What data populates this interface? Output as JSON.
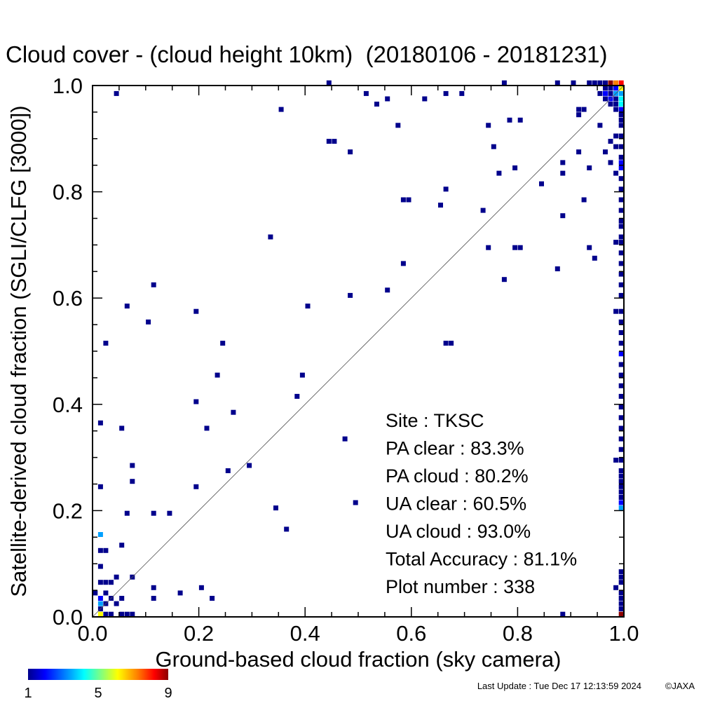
{
  "chart_data": {
    "type": "heatmap",
    "title": "Cloud cover - (cloud height 10km)  (20180106 - 20181231)",
    "xlabel": "Ground-based cloud fraction (sky camera)",
    "ylabel": "Satellite-derived cloud fraction (SGLI/CLFG [3000])",
    "xlim": [
      0.0,
      1.0
    ],
    "ylim": [
      0.0,
      1.0
    ],
    "xticks": [
      "0.0",
      "0.2",
      "0.4",
      "0.6",
      "0.8",
      "1.0"
    ],
    "yticks": [
      "0.0",
      "0.2",
      "0.4",
      "0.6",
      "0.8",
      "1.0"
    ],
    "bin_size": 0.01,
    "reference_line": "y = x",
    "grid": false,
    "colorbar": {
      "min": 1,
      "max": 9,
      "tick_labels": [
        "1",
        "5",
        "9"
      ],
      "colors": [
        "#00008c",
        "#0000ff",
        "#00a0ff",
        "#00ffff",
        "#80ff80",
        "#ffff00",
        "#ff8000",
        "#ff0000",
        "#8c0000"
      ]
    },
    "stats": [
      {
        "label": "Site : ",
        "value": "TKSC"
      },
      {
        "label": "PA clear :  ",
        "value": "83.3%"
      },
      {
        "label": "PA cloud :  ",
        "value": "80.2%"
      },
      {
        "label": "UA clear :  ",
        "value": "60.5%"
      },
      {
        "label": "UA cloud :  ",
        "value": "93.0%"
      },
      {
        "label": "Total Accuracy :  ",
        "value": "81.1%"
      },
      {
        "label": "Plot number :       ",
        "value": "338"
      }
    ],
    "points": [
      [
        0.04,
        0.98,
        1
      ],
      [
        0.44,
        1.0,
        1
      ],
      [
        0.51,
        0.98,
        1
      ],
      [
        0.53,
        0.96,
        1
      ],
      [
        0.55,
        0.97,
        1
      ],
      [
        0.62,
        0.97,
        1
      ],
      [
        0.66,
        0.98,
        1
      ],
      [
        0.69,
        0.98,
        1
      ],
      [
        0.35,
        0.95,
        1
      ],
      [
        0.57,
        0.92,
        1
      ],
      [
        0.74,
        0.92,
        1
      ],
      [
        0.78,
        0.93,
        1
      ],
      [
        0.8,
        0.93,
        1
      ],
      [
        0.44,
        0.89,
        1
      ],
      [
        0.45,
        0.89,
        1
      ],
      [
        0.48,
        0.87,
        1
      ],
      [
        0.75,
        0.88,
        1
      ],
      [
        0.76,
        0.83,
        1
      ],
      [
        0.79,
        0.84,
        1
      ],
      [
        0.88,
        0.85,
        1
      ],
      [
        0.88,
        0.83,
        1
      ],
      [
        0.91,
        0.87,
        1
      ],
      [
        0.93,
        0.84,
        1
      ],
      [
        0.84,
        0.81,
        1
      ],
      [
        0.66,
        0.8,
        1
      ],
      [
        0.58,
        0.78,
        1
      ],
      [
        0.59,
        0.78,
        1
      ],
      [
        0.65,
        0.77,
        1
      ],
      [
        0.73,
        0.76,
        1
      ],
      [
        0.88,
        0.75,
        1
      ],
      [
        0.92,
        0.78,
        1
      ],
      [
        0.33,
        0.71,
        1
      ],
      [
        0.74,
        0.69,
        1
      ],
      [
        0.79,
        0.69,
        1
      ],
      [
        0.8,
        0.69,
        1
      ],
      [
        0.93,
        0.69,
        1
      ],
      [
        0.94,
        0.67,
        1
      ],
      [
        0.58,
        0.66,
        1
      ],
      [
        0.87,
        0.65,
        1
      ],
      [
        0.77,
        0.63,
        1
      ],
      [
        0.11,
        0.62,
        1
      ],
      [
        0.48,
        0.6,
        1
      ],
      [
        0.55,
        0.61,
        1
      ],
      [
        0.06,
        0.58,
        1
      ],
      [
        0.19,
        0.57,
        1
      ],
      [
        0.4,
        0.58,
        1
      ],
      [
        0.1,
        0.55,
        1
      ],
      [
        0.02,
        0.51,
        1
      ],
      [
        0.24,
        0.51,
        1
      ],
      [
        0.66,
        0.51,
        1
      ],
      [
        0.67,
        0.51,
        1
      ],
      [
        0.23,
        0.45,
        1
      ],
      [
        0.39,
        0.45,
        1
      ],
      [
        0.38,
        0.41,
        1
      ],
      [
        0.19,
        0.4,
        1
      ],
      [
        0.26,
        0.38,
        1
      ],
      [
        0.01,
        0.36,
        1
      ],
      [
        0.05,
        0.35,
        1
      ],
      [
        0.21,
        0.35,
        1
      ],
      [
        0.47,
        0.33,
        1
      ],
      [
        0.07,
        0.28,
        1
      ],
      [
        0.29,
        0.28,
        1
      ],
      [
        0.25,
        0.27,
        1
      ],
      [
        0.07,
        0.25,
        1
      ],
      [
        0.01,
        0.24,
        1
      ],
      [
        0.19,
        0.24,
        1
      ],
      [
        0.49,
        0.21,
        1
      ],
      [
        0.34,
        0.2,
        1
      ],
      [
        0.06,
        0.19,
        1
      ],
      [
        0.11,
        0.19,
        1
      ],
      [
        0.14,
        0.19,
        1
      ],
      [
        0.36,
        0.16,
        1
      ],
      [
        0.01,
        0.15,
        3
      ],
      [
        0.05,
        0.13,
        1
      ],
      [
        0.01,
        0.12,
        1
      ],
      [
        0.02,
        0.12,
        1
      ],
      [
        0.07,
        0.07,
        1
      ],
      [
        0.11,
        0.05,
        1
      ],
      [
        0.16,
        0.04,
        1
      ],
      [
        0.2,
        0.05,
        1
      ],
      [
        0.22,
        0.03,
        1
      ],
      [
        0.11,
        0.03,
        1
      ],
      [
        0.01,
        0.09,
        1
      ],
      [
        0.01,
        0.06,
        1
      ],
      [
        0.02,
        0.06,
        1
      ],
      [
        0.03,
        0.06,
        1
      ],
      [
        0.04,
        0.07,
        1
      ],
      [
        0.0,
        0.04,
        1
      ],
      [
        0.01,
        0.03,
        2
      ],
      [
        0.02,
        0.04,
        1
      ],
      [
        0.03,
        0.03,
        1
      ],
      [
        0.05,
        0.03,
        1
      ],
      [
        0.04,
        0.02,
        1
      ],
      [
        0.01,
        0.02,
        3
      ],
      [
        0.02,
        0.02,
        1
      ],
      [
        0.01,
        0.01,
        1
      ],
      [
        0.02,
        0.0,
        1
      ],
      [
        0.03,
        0.0,
        1
      ],
      [
        0.01,
        0.0,
        6
      ],
      [
        0.05,
        0.0,
        1
      ],
      [
        0.06,
        0.0,
        1
      ],
      [
        0.07,
        0.0,
        1
      ],
      [
        0.88,
        0.0,
        1
      ],
      [
        0.99,
        0.0,
        9
      ],
      [
        0.77,
        1.0,
        1
      ],
      [
        0.87,
        1.0,
        1
      ],
      [
        0.9,
        1.0,
        1
      ],
      [
        0.93,
        1.0,
        1
      ],
      [
        0.94,
        1.0,
        1
      ],
      [
        0.95,
        1.0,
        1
      ],
      [
        0.96,
        1.0,
        1
      ],
      [
        0.97,
        1.0,
        9
      ],
      [
        0.98,
        1.0,
        7
      ],
      [
        0.99,
        1.0,
        8
      ],
      [
        0.96,
        0.99,
        1
      ],
      [
        0.97,
        0.99,
        1
      ],
      [
        0.98,
        0.99,
        2
      ],
      [
        0.99,
        0.99,
        6
      ],
      [
        0.95,
        0.98,
        1
      ],
      [
        0.96,
        0.98,
        2
      ],
      [
        0.97,
        0.98,
        1
      ],
      [
        0.98,
        0.98,
        3
      ],
      [
        0.99,
        0.98,
        3
      ],
      [
        0.96,
        0.97,
        1
      ],
      [
        0.97,
        0.97,
        2
      ],
      [
        0.98,
        0.97,
        1
      ],
      [
        0.99,
        0.97,
        4
      ],
      [
        0.97,
        0.96,
        1
      ],
      [
        0.98,
        0.96,
        1
      ],
      [
        0.99,
        0.96,
        4
      ],
      [
        0.91,
        0.95,
        1
      ],
      [
        0.92,
        0.95,
        1
      ],
      [
        0.98,
        0.95,
        1
      ],
      [
        0.99,
        0.95,
        2
      ],
      [
        0.91,
        0.94,
        1
      ],
      [
        0.99,
        0.94,
        1
      ],
      [
        0.99,
        0.93,
        1
      ],
      [
        0.95,
        0.92,
        1
      ],
      [
        0.99,
        0.92,
        1
      ],
      [
        0.98,
        0.9,
        1
      ],
      [
        0.99,
        0.9,
        1
      ],
      [
        0.97,
        0.89,
        1
      ],
      [
        0.98,
        0.88,
        1
      ],
      [
        0.99,
        0.88,
        1
      ],
      [
        0.96,
        0.87,
        1
      ],
      [
        0.99,
        0.86,
        1
      ],
      [
        0.97,
        0.85,
        1
      ],
      [
        0.99,
        0.85,
        2
      ],
      [
        0.99,
        0.84,
        2
      ],
      [
        0.98,
        0.83,
        1
      ],
      [
        0.99,
        0.82,
        1
      ],
      [
        0.99,
        0.8,
        1
      ],
      [
        0.99,
        0.78,
        1
      ],
      [
        0.99,
        0.76,
        1
      ],
      [
        0.99,
        0.74,
        1
      ],
      [
        0.99,
        0.73,
        1
      ],
      [
        0.99,
        0.71,
        1
      ],
      [
        0.98,
        0.7,
        1
      ],
      [
        0.99,
        0.7,
        1
      ],
      [
        0.99,
        0.68,
        1
      ],
      [
        0.99,
        0.66,
        1
      ],
      [
        0.99,
        0.64,
        1
      ],
      [
        0.99,
        0.62,
        1
      ],
      [
        0.99,
        0.6,
        1
      ],
      [
        0.98,
        0.57,
        1
      ],
      [
        0.99,
        0.57,
        1
      ],
      [
        0.99,
        0.55,
        1
      ],
      [
        0.99,
        0.53,
        1
      ],
      [
        0.99,
        0.51,
        1
      ],
      [
        0.99,
        0.49,
        2
      ],
      [
        0.99,
        0.47,
        1
      ],
      [
        0.99,
        0.45,
        1
      ],
      [
        0.99,
        0.43,
        1
      ],
      [
        0.99,
        0.41,
        1
      ],
      [
        0.99,
        0.39,
        1
      ],
      [
        0.99,
        0.37,
        1
      ],
      [
        0.99,
        0.35,
        1
      ],
      [
        0.99,
        0.33,
        1
      ],
      [
        0.99,
        0.31,
        1
      ],
      [
        0.98,
        0.29,
        1
      ],
      [
        0.99,
        0.29,
        1
      ],
      [
        0.99,
        0.27,
        1
      ],
      [
        0.99,
        0.26,
        1
      ],
      [
        0.99,
        0.25,
        1
      ],
      [
        0.99,
        0.24,
        1
      ],
      [
        0.99,
        0.23,
        1
      ],
      [
        0.99,
        0.22,
        1
      ],
      [
        0.99,
        0.21,
        2
      ],
      [
        0.99,
        0.2,
        3
      ],
      [
        0.99,
        0.08,
        1
      ],
      [
        0.99,
        0.07,
        1
      ],
      [
        0.99,
        0.06,
        1
      ],
      [
        0.98,
        0.05,
        1
      ],
      [
        0.99,
        0.04,
        1
      ],
      [
        0.99,
        0.03,
        1
      ],
      [
        0.99,
        0.02,
        1
      ],
      [
        0.99,
        0.01,
        1
      ]
    ]
  },
  "footer": {
    "last_update": "Last Update : Tue Dec 17 12:13:59 2024",
    "credit": "©JAXA"
  }
}
